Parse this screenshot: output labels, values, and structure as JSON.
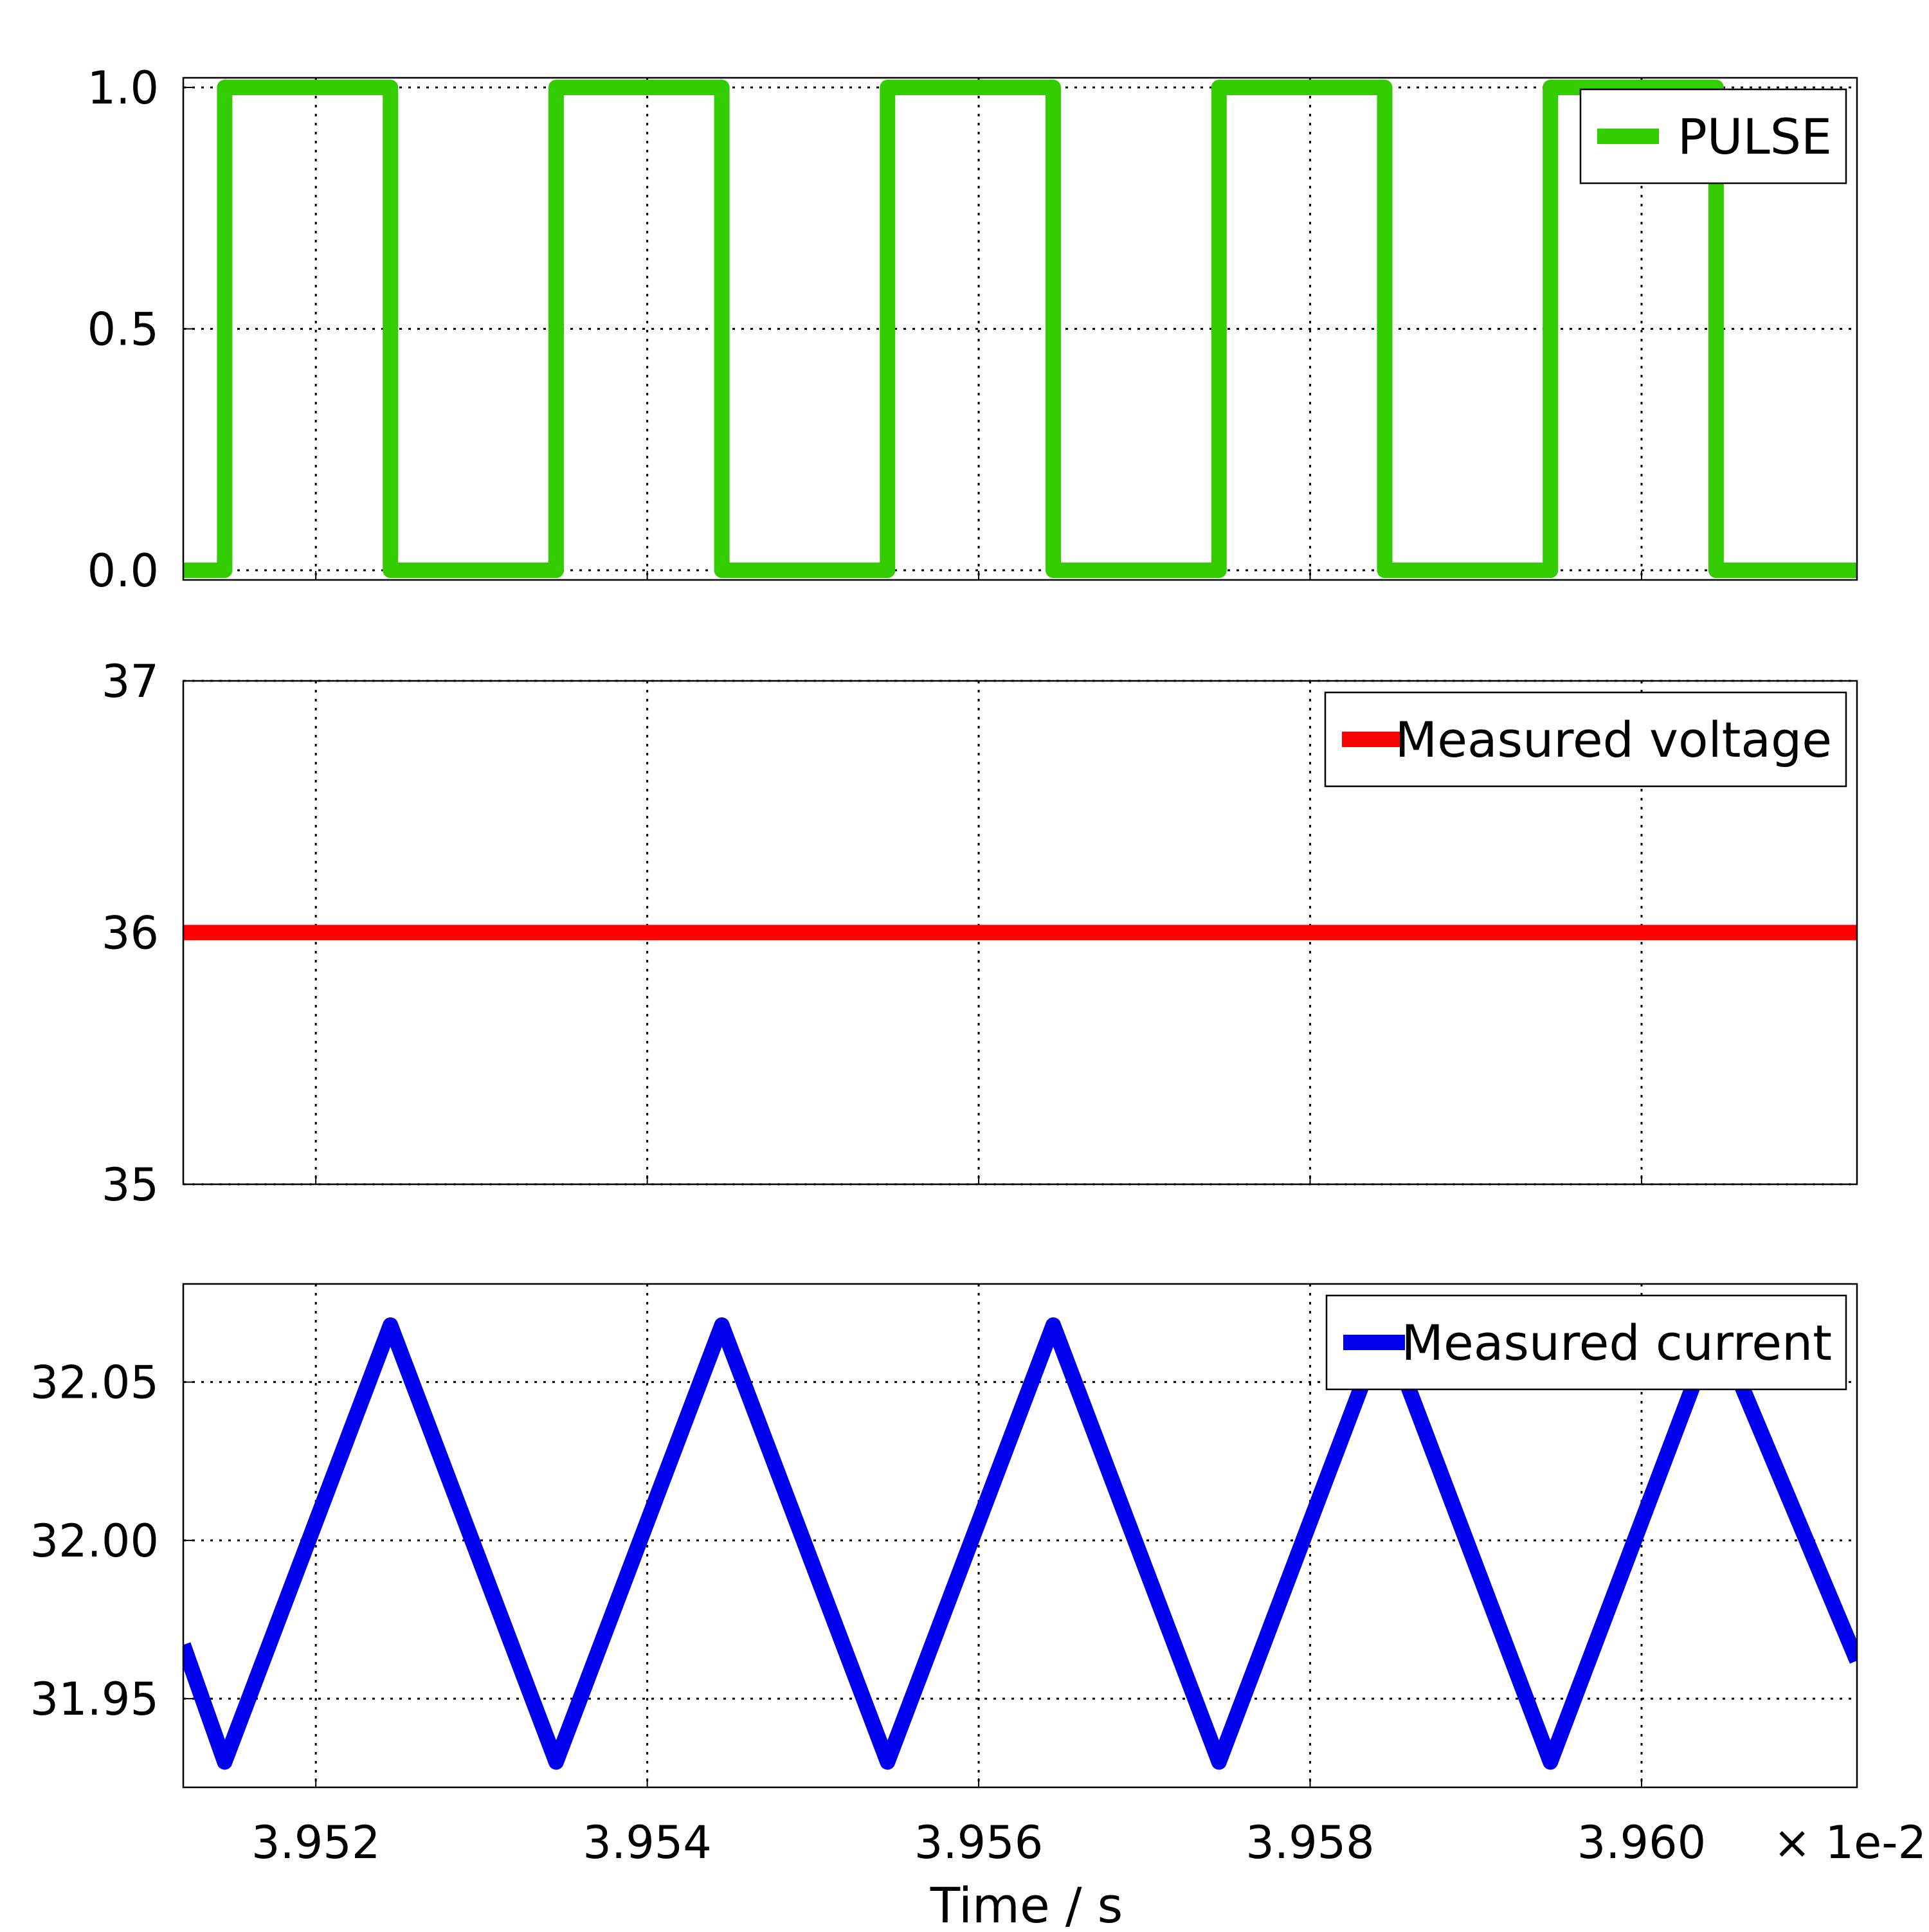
{
  "chart_data": [
    {
      "type": "line",
      "xlim": [
        3.9512,
        3.9613
      ],
      "ylim": [
        -0.02,
        1.02
      ],
      "yticks": [
        0.0,
        0.5,
        1.0
      ],
      "ytick_labels": [
        "0.0",
        "0.5",
        "1.0"
      ],
      "grid": true,
      "legend_placement": "top-right",
      "series": [
        {
          "name": "PULSE",
          "color": "#33cc00",
          "x": [
            3.9512,
            3.95145,
            3.95145,
            3.95245,
            3.95245,
            3.95345,
            3.95345,
            3.95445,
            3.95445,
            3.95545,
            3.95545,
            3.95645,
            3.95645,
            3.95745,
            3.95745,
            3.95845,
            3.95845,
            3.95945,
            3.95945,
            3.96045,
            3.96045,
            3.9613
          ],
          "y": [
            0,
            0,
            1,
            1,
            0,
            0,
            1,
            1,
            0,
            0,
            1,
            1,
            0,
            0,
            1,
            1,
            0,
            0,
            1,
            1,
            0,
            0
          ]
        }
      ]
    },
    {
      "type": "line",
      "xlim": [
        3.9512,
        3.9613
      ],
      "ylim": [
        35,
        37
      ],
      "yticks": [
        35,
        36,
        37
      ],
      "ytick_labels": [
        "35",
        "36",
        "37"
      ],
      "grid": true,
      "legend_placement": "top-right",
      "series": [
        {
          "name": "Measured voltage",
          "color": "#ff0000",
          "x": [
            3.9512,
            3.9613
          ],
          "y": [
            36,
            36
          ]
        }
      ]
    },
    {
      "type": "line",
      "xlim": [
        3.9512,
        3.9613
      ],
      "ylim": [
        31.922,
        32.081
      ],
      "yticks": [
        31.95,
        32.0,
        32.05
      ],
      "ytick_labels": [
        "31.95",
        "32.00",
        "32.05"
      ],
      "grid": true,
      "legend_placement": "top-right",
      "xticks": [
        3.952,
        3.954,
        3.956,
        3.958,
        3.96
      ],
      "xtick_labels": [
        "3.952",
        "3.954",
        "3.956",
        "3.958",
        "3.960"
      ],
      "x_offset_label": "× 1e-2",
      "xlabel": "Time / s",
      "series": [
        {
          "name": "Measured current",
          "color": "#0000ee",
          "x": [
            3.9512,
            3.95145,
            3.95245,
            3.95345,
            3.95445,
            3.95545,
            3.95645,
            3.95745,
            3.95845,
            3.95945,
            3.96045,
            3.9613
          ],
          "y": [
            31.967,
            31.93,
            32.068,
            31.93,
            32.068,
            31.93,
            32.068,
            31.93,
            32.068,
            31.93,
            32.068,
            31.962
          ]
        }
      ]
    }
  ]
}
